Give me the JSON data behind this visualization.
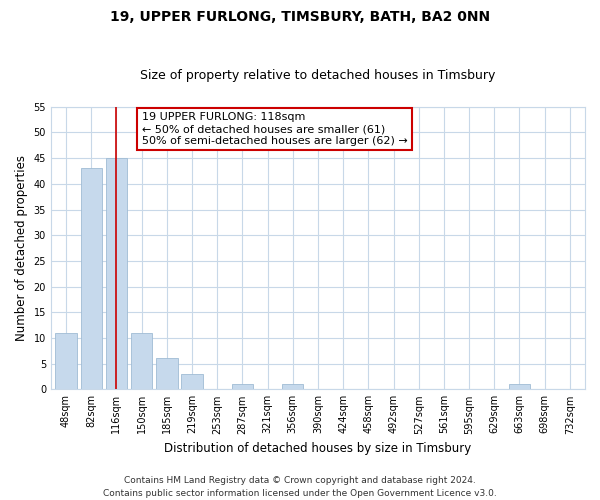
{
  "title": "19, UPPER FURLONG, TIMSBURY, BATH, BA2 0NN",
  "subtitle": "Size of property relative to detached houses in Timsbury",
  "xlabel": "Distribution of detached houses by size in Timsbury",
  "ylabel": "Number of detached properties",
  "categories": [
    "48sqm",
    "82sqm",
    "116sqm",
    "150sqm",
    "185sqm",
    "219sqm",
    "253sqm",
    "287sqm",
    "321sqm",
    "356sqm",
    "390sqm",
    "424sqm",
    "458sqm",
    "492sqm",
    "527sqm",
    "561sqm",
    "595sqm",
    "629sqm",
    "663sqm",
    "698sqm",
    "732sqm"
  ],
  "values": [
    11,
    43,
    45,
    11,
    6,
    3,
    0,
    1,
    0,
    1,
    0,
    0,
    0,
    0,
    0,
    0,
    0,
    0,
    1,
    0,
    0
  ],
  "bar_color": "#c6d9ec",
  "bar_edge_color": "#a0bcd4",
  "vline_x_index": 2,
  "vline_color": "#cc0000",
  "ylim": [
    0,
    55
  ],
  "yticks": [
    0,
    5,
    10,
    15,
    20,
    25,
    30,
    35,
    40,
    45,
    50,
    55
  ],
  "annotation_title": "19 UPPER FURLONG: 118sqm",
  "annotation_line1": "← 50% of detached houses are smaller (61)",
  "annotation_line2": "50% of semi-detached houses are larger (62) →",
  "annotation_box_color": "#ffffff",
  "annotation_box_edge": "#cc0000",
  "footer_line1": "Contains HM Land Registry data © Crown copyright and database right 2024.",
  "footer_line2": "Contains public sector information licensed under the Open Government Licence v3.0.",
  "background_color": "#ffffff",
  "plot_bg_color": "#ffffff",
  "grid_color": "#c8d8e8",
  "title_fontsize": 10,
  "subtitle_fontsize": 9,
  "axis_label_fontsize": 8.5,
  "tick_fontsize": 7,
  "annotation_fontsize": 8,
  "footer_fontsize": 6.5
}
